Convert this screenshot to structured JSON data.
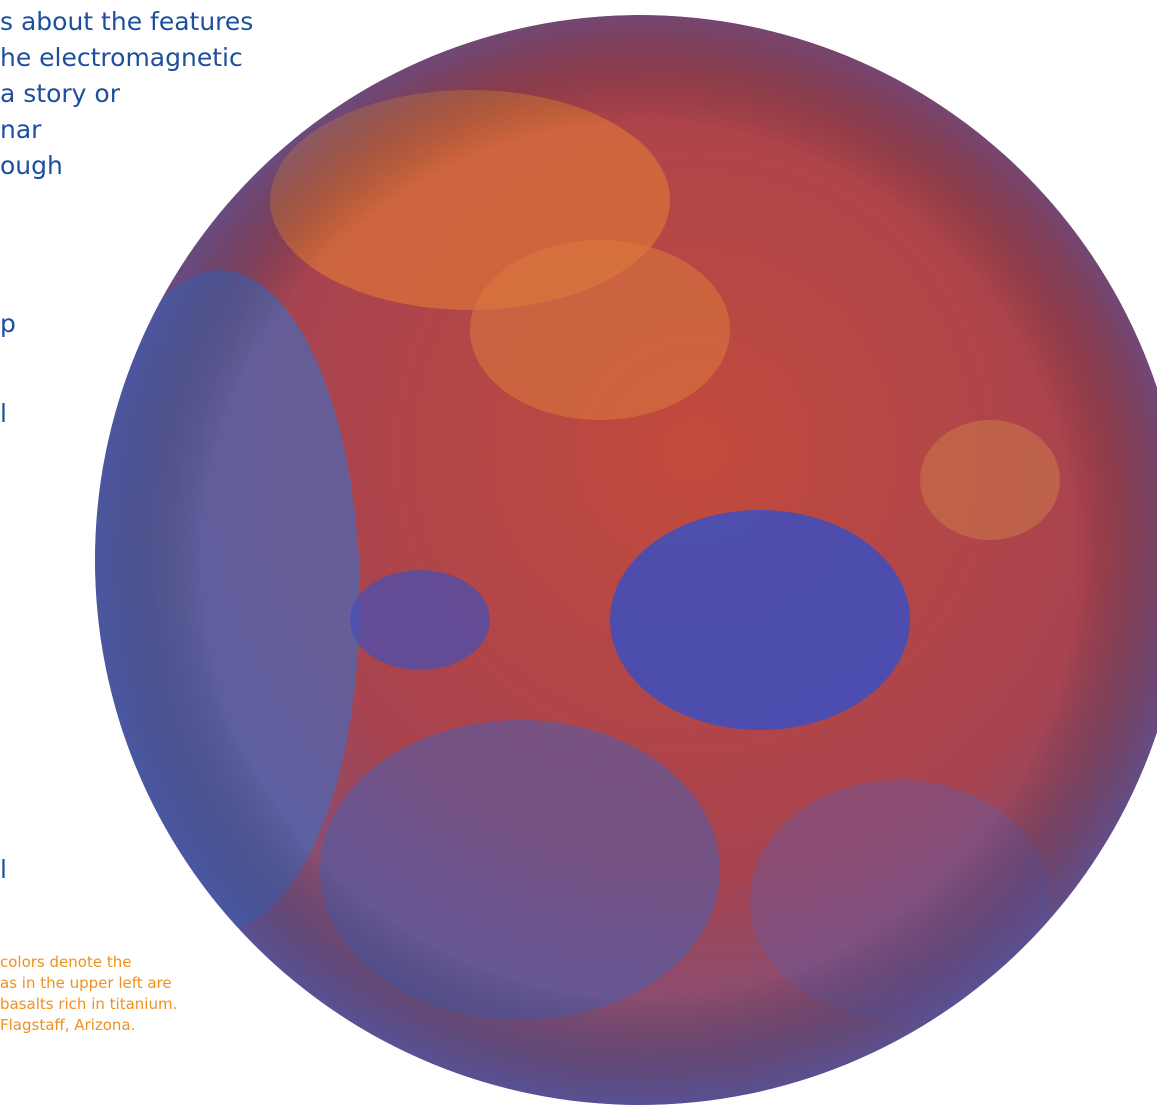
{
  "body_text": [
    "s about the features",
    "he electromagnetic",
    "a story or",
    "nar",
    "ough"
  ],
  "fragments": [
    "p",
    "l",
    "l"
  ],
  "caption": [
    "colors denote the",
    "as in the upper left are",
    "basalts rich in titanium.",
    "Flagstaff, Arizona."
  ]
}
